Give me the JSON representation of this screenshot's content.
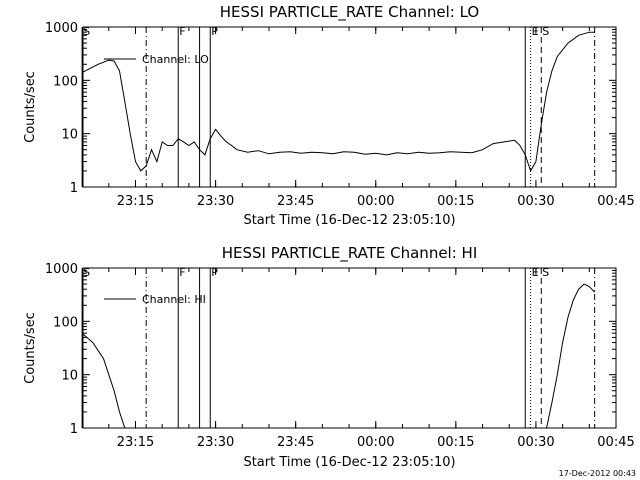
{
  "chart_data": [
    {
      "type": "line",
      "title": "HESSI PARTICLE_RATE Channel: LO",
      "xlabel": "Start Time (16-Dec-12 23:05:10)",
      "ylabel": "Counts/sec",
      "yscale": "log",
      "ylim": [
        1,
        1000
      ],
      "xlim_minutes_after_start": [
        0,
        99.83
      ],
      "x_ticks": [
        "23:15",
        "23:30",
        "23:45",
        "00:00",
        "00:15",
        "00:30",
        "00:45"
      ],
      "y_ticks": [
        "1",
        "10",
        "100",
        "1000"
      ],
      "legend": {
        "label": "Channel: LO",
        "placement": "top-left"
      },
      "event_markers": [
        {
          "label": "S",
          "time": "23:05",
          "style": "solid"
        },
        {
          "label": "",
          "time": "23:17",
          "style": "dash-dot"
        },
        {
          "label": "F",
          "time": "23:23",
          "style": "solid"
        },
        {
          "label": "",
          "time": "23:27",
          "style": "solid"
        },
        {
          "label": "P",
          "time": "23:29",
          "style": "solid"
        },
        {
          "label": "",
          "time": "00:28",
          "style": "solid"
        },
        {
          "label": "E",
          "time": "00:29",
          "style": "dotted"
        },
        {
          "label": "S",
          "time": "00:31",
          "style": "dashed"
        },
        {
          "label": "",
          "time": "00:41",
          "style": "dash-dot"
        }
      ],
      "series": [
        {
          "name": "Channel: LO",
          "x": [
            "23:05",
            "23:08",
            "23:10",
            "23:11",
            "23:12",
            "23:13",
            "23:14",
            "23:15",
            "23:16",
            "23:17",
            "23:18",
            "23:19",
            "23:20",
            "23:21",
            "23:22",
            "23:23",
            "23:24",
            "23:25",
            "23:26",
            "23:27",
            "23:28",
            "23:29",
            "23:30",
            "23:31",
            "23:32",
            "23:33",
            "23:34",
            "23:36",
            "23:38",
            "23:40",
            "23:42",
            "23:44",
            "23:46",
            "23:48",
            "23:50",
            "23:52",
            "23:54",
            "23:56",
            "23:58",
            "00:00",
            "00:02",
            "00:04",
            "00:06",
            "00:08",
            "00:10",
            "00:12",
            "00:14",
            "00:16",
            "00:18",
            "00:20",
            "00:22",
            "00:24",
            "00:26",
            "00:27",
            "00:28",
            "00:29",
            "00:30",
            "00:31",
            "00:32",
            "00:33",
            "00:34",
            "00:36",
            "00:38",
            "00:40",
            "00:41"
          ],
          "y": [
            140,
            200,
            240,
            230,
            150,
            40,
            10,
            3,
            2,
            2.5,
            5,
            3,
            7,
            6,
            6,
            8,
            7,
            6,
            7,
            5,
            4,
            8,
            12,
            9,
            7,
            6,
            5,
            4.5,
            4.8,
            4.2,
            4.5,
            4.6,
            4.3,
            4.5,
            4.4,
            4.2,
            4.6,
            4.5,
            4.1,
            4.3,
            4.0,
            4.4,
            4.2,
            4.5,
            4.3,
            4.4,
            4.6,
            4.5,
            4.4,
            5,
            6.5,
            7,
            7.5,
            6,
            4,
            2,
            3,
            15,
            60,
            150,
            280,
            500,
            700,
            800,
            800
          ]
        }
      ]
    },
    {
      "type": "line",
      "title": "HESSI PARTICLE_RATE Channel: HI",
      "xlabel": "Start Time (16-Dec-12 23:05:10)",
      "ylabel": "Counts/sec",
      "yscale": "log",
      "ylim": [
        1,
        1000
      ],
      "xlim_minutes_after_start": [
        0,
        99.83
      ],
      "x_ticks": [
        "23:15",
        "23:30",
        "23:45",
        "00:00",
        "00:15",
        "00:30",
        "00:45"
      ],
      "y_ticks": [
        "1",
        "10",
        "100",
        "1000"
      ],
      "legend": {
        "label": "Channel: HI",
        "placement": "top-left"
      },
      "event_markers": [
        {
          "label": "S",
          "time": "23:05",
          "style": "solid"
        },
        {
          "label": "",
          "time": "23:17",
          "style": "dash-dot"
        },
        {
          "label": "F",
          "time": "23:23",
          "style": "solid"
        },
        {
          "label": "",
          "time": "23:27",
          "style": "solid"
        },
        {
          "label": "P",
          "time": "23:29",
          "style": "solid"
        },
        {
          "label": "",
          "time": "00:28",
          "style": "solid"
        },
        {
          "label": "E",
          "time": "00:29",
          "style": "dotted"
        },
        {
          "label": "S",
          "time": "00:31",
          "style": "dashed"
        },
        {
          "label": "",
          "time": "00:41",
          "style": "dash-dot"
        }
      ],
      "series": [
        {
          "name": "Channel: HI",
          "x": [
            "23:05",
            "23:07",
            "23:09",
            "23:10",
            "23:11",
            "23:12",
            "23:13",
            "00:32",
            "00:33",
            "00:34",
            "00:35",
            "00:36",
            "00:37",
            "00:38",
            "00:39",
            "00:40",
            "00:41"
          ],
          "y": [
            60,
            40,
            20,
            10,
            5,
            2,
            1,
            1,
            3,
            10,
            40,
            120,
            250,
            400,
            500,
            450,
            350
          ]
        }
      ]
    }
  ],
  "timestamp": "17-Dec-2012 00:43"
}
